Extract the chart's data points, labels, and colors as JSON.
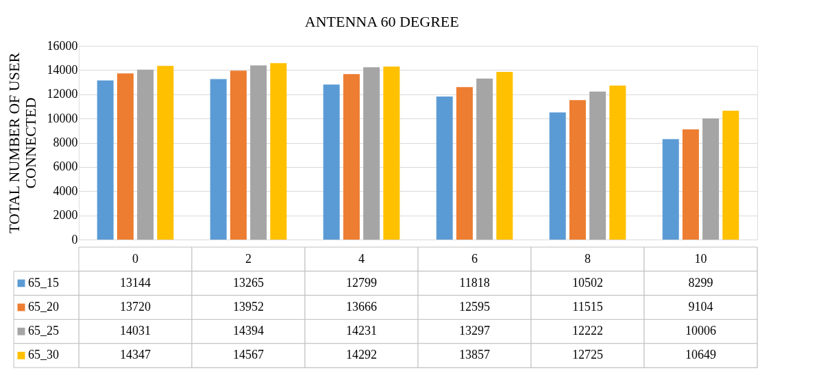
{
  "chart_data": {
    "type": "bar",
    "title": "ANTENNA 60 DEGREE",
    "ylabel": "TOTAL NUMBER OF USER CONNECTED",
    "categories": [
      "0",
      "2",
      "4",
      "6",
      "8",
      "10"
    ],
    "series": [
      {
        "name": "65_15",
        "color": "#5b9bd5",
        "values": [
          13144,
          13265,
          12799,
          11818,
          10502,
          8299
        ]
      },
      {
        "name": "65_20",
        "color": "#ed7d31",
        "values": [
          13720,
          13952,
          13666,
          12595,
          11515,
          9104
        ]
      },
      {
        "name": "65_25",
        "color": "#a5a5a5",
        "values": [
          14031,
          14394,
          14231,
          13297,
          12222,
          10006
        ]
      },
      {
        "name": "65_30",
        "color": "#ffc000",
        "values": [
          14347,
          14567,
          14292,
          13857,
          12725,
          10649
        ]
      }
    ],
    "ylim": [
      0,
      16000
    ],
    "yticks": [
      0,
      2000,
      4000,
      6000,
      8000,
      10000,
      12000,
      14000,
      16000
    ],
    "grid": "y",
    "data_labels": true,
    "legend": "bottom"
  }
}
